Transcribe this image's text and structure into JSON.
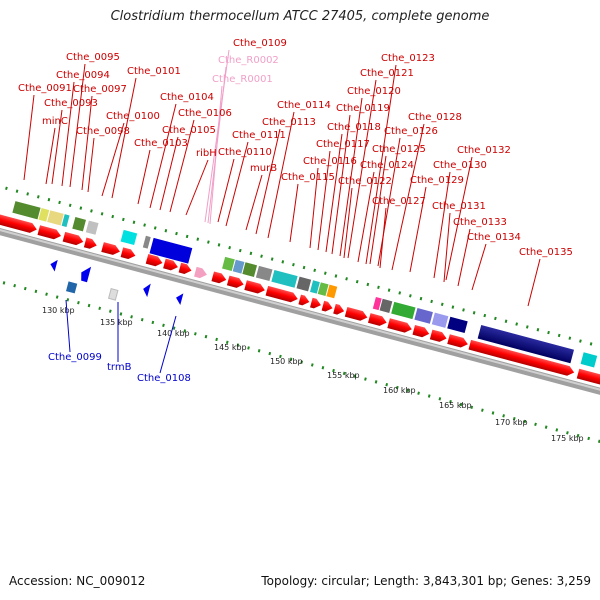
{
  "title": "Clostridium thermocellum ATCC 27405, complete genome",
  "footer": {
    "accession": "Accession: NC_009012",
    "summary": "Topology: circular; Length: 3,843,301 bp; Genes: 3,259"
  },
  "colors": {
    "forward_gene": "#ff0000",
    "reverse_gene": "#0000ff",
    "gene_label": "#cc0000",
    "reverse_label": "#0000cc",
    "rna_label": "#f0a0c8",
    "backbone": "#aaaaaa",
    "tick": "#339933"
  },
  "ruler_labels": [
    {
      "text": "130 kbp"
    },
    {
      "text": "135 kbp"
    },
    {
      "text": "140 kbp"
    },
    {
      "text": "145 kbp"
    },
    {
      "text": "150 kbp"
    },
    {
      "text": "155 kbp"
    },
    {
      "text": "160 kbp"
    },
    {
      "text": "165 kbp"
    },
    {
      "text": "170 kbp"
    },
    {
      "text": "175 kbp"
    }
  ],
  "gene_labels": [
    {
      "text": "Cthe_0109",
      "kind": "rna-ref"
    },
    {
      "text": "Cthe_R0002",
      "kind": "rna"
    },
    {
      "text": "Cthe_R0001",
      "kind": "rna"
    },
    {
      "text": "Cthe_0095",
      "kind": "fwd"
    },
    {
      "text": "Cthe_0101",
      "kind": "fwd"
    },
    {
      "text": "Cthe_0094",
      "kind": "fwd"
    },
    {
      "text": "Cthe_0091",
      "kind": "fwd"
    },
    {
      "text": "Cthe_0097",
      "kind": "fwd"
    },
    {
      "text": "Cthe_0093",
      "kind": "fwd"
    },
    {
      "text": "Cthe_0104",
      "kind": "fwd"
    },
    {
      "text": "minC",
      "kind": "fwd"
    },
    {
      "text": "Cthe_0100",
      "kind": "fwd"
    },
    {
      "text": "Cthe_0106",
      "kind": "fwd"
    },
    {
      "text": "Cthe_0098",
      "kind": "fwd"
    },
    {
      "text": "Cthe_0105",
      "kind": "fwd"
    },
    {
      "text": "Cthe_0103",
      "kind": "fwd"
    },
    {
      "text": "ribH",
      "kind": "fwd"
    },
    {
      "text": "Cthe_0111",
      "kind": "fwd"
    },
    {
      "text": "Cthe_0110",
      "kind": "fwd"
    },
    {
      "text": "murB",
      "kind": "fwd"
    },
    {
      "text": "Cthe_0114",
      "kind": "fwd"
    },
    {
      "text": "Cthe_0113",
      "kind": "fwd"
    },
    {
      "text": "Cthe_0115",
      "kind": "fwd"
    },
    {
      "text": "Cthe_0123",
      "kind": "fwd"
    },
    {
      "text": "Cthe_0121",
      "kind": "fwd"
    },
    {
      "text": "Cthe_0120",
      "kind": "fwd"
    },
    {
      "text": "Cthe_0119",
      "kind": "fwd"
    },
    {
      "text": "Cthe_0118",
      "kind": "fwd"
    },
    {
      "text": "Cthe_0117",
      "kind": "fwd"
    },
    {
      "text": "Cthe_0116",
      "kind": "fwd"
    },
    {
      "text": "Cthe_0128",
      "kind": "fwd"
    },
    {
      "text": "Cthe_0126",
      "kind": "fwd"
    },
    {
      "text": "Cthe_0125",
      "kind": "fwd"
    },
    {
      "text": "Cthe_0124",
      "kind": "fwd"
    },
    {
      "text": "Cthe_0122",
      "kind": "fwd"
    },
    {
      "text": "Cthe_0127",
      "kind": "fwd"
    },
    {
      "text": "Cthe_0132",
      "kind": "fwd"
    },
    {
      "text": "Cthe_0130",
      "kind": "fwd"
    },
    {
      "text": "Cthe_0129",
      "kind": "fwd"
    },
    {
      "text": "Cthe_0131",
      "kind": "fwd"
    },
    {
      "text": "Cthe_0133",
      "kind": "fwd"
    },
    {
      "text": "Cthe_0134",
      "kind": "fwd"
    },
    {
      "text": "Cthe_0135",
      "kind": "fwd"
    },
    {
      "text": "Cthe_0099",
      "kind": "rev"
    },
    {
      "text": "trmB",
      "kind": "rev"
    },
    {
      "text": "Cthe_0108",
      "kind": "rev"
    }
  ]
}
